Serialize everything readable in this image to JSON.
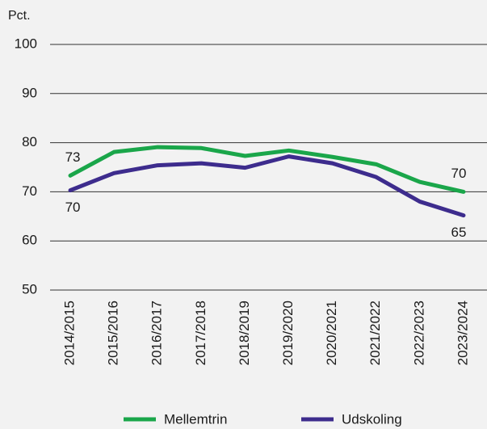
{
  "chart_data": {
    "type": "line",
    "y_unit": "Pct.",
    "categories": [
      "2014/2015",
      "2015/2016",
      "2016/2017",
      "2017/2018",
      "2018/2019",
      "2019/2020",
      "2020/2021",
      "2021/2022",
      "2022/2023",
      "2023/2024"
    ],
    "series": [
      {
        "name": "Mellemtrin",
        "color": "#1aa64a",
        "values": [
          73.3,
          78.1,
          79.1,
          78.9,
          77.3,
          78.4,
          77.1,
          75.6,
          72.0,
          70.0
        ],
        "value_labels": [
          "73",
          null,
          null,
          null,
          null,
          null,
          null,
          null,
          null,
          "70"
        ]
      },
      {
        "name": "Udskoling",
        "color": "#3d2c8d",
        "values": [
          70.3,
          73.8,
          75.4,
          75.8,
          74.9,
          77.2,
          75.8,
          73.0,
          68.0,
          65.2
        ],
        "value_labels": [
          "70",
          null,
          null,
          null,
          null,
          null,
          null,
          null,
          null,
          "65"
        ]
      }
    ],
    "ylim": [
      50,
      100
    ],
    "yticks": [
      50,
      60,
      70,
      80,
      90,
      100
    ],
    "grid": true,
    "legend": "bottom"
  }
}
